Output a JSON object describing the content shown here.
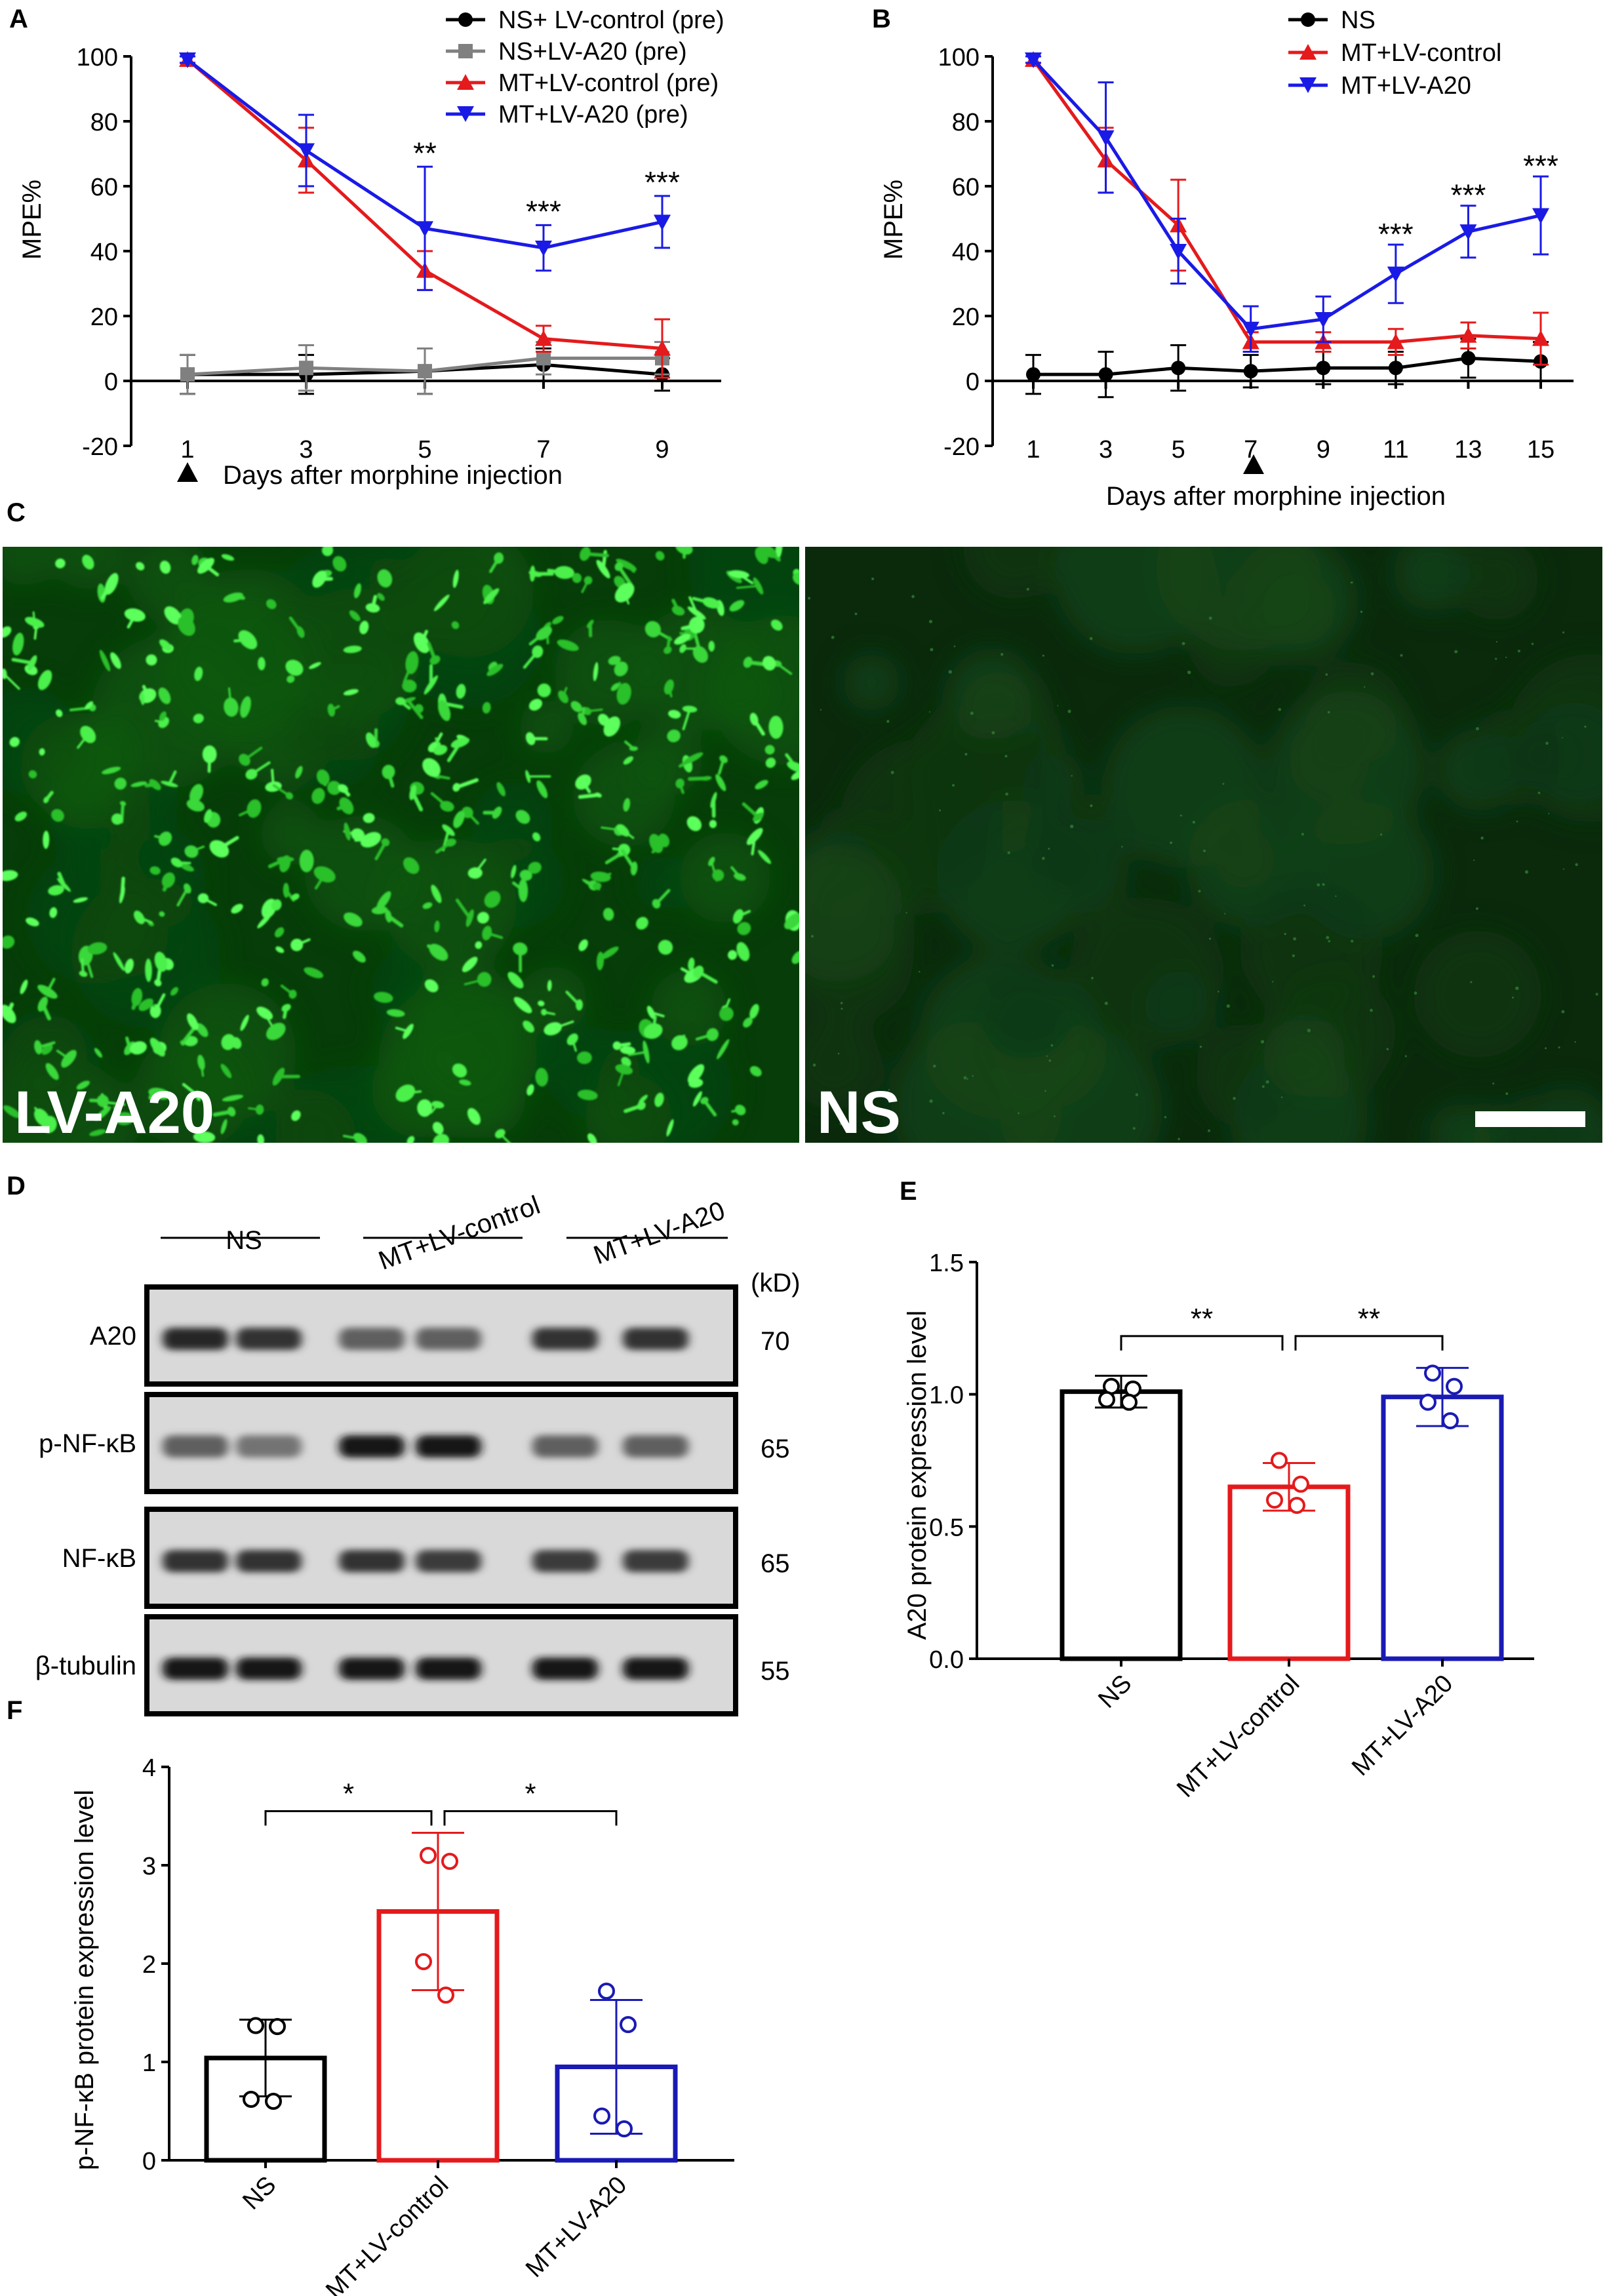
{
  "panels": {
    "A": {
      "letter": "A",
      "ylabel": "MPE%",
      "xlabel": "Days after morphine injection",
      "chart_data": {
        "type": "line",
        "x": [
          1,
          3,
          5,
          7,
          9
        ],
        "xticks": [
          "1",
          "3",
          "5",
          "7",
          "9"
        ],
        "ylim": [
          -20,
          100
        ],
        "yticks": [
          "100",
          "80",
          "60",
          "40",
          "20",
          "0",
          "-20"
        ],
        "series": [
          {
            "name": "NS+ LV-control (pre)",
            "color": "#000000",
            "marker": "circle",
            "values": [
              2,
              2,
              3,
              5,
              2
            ],
            "errors": [
              6,
              6,
              7,
              5,
              5
            ]
          },
          {
            "name": "NS+LV-A20 (pre)",
            "color": "#808080",
            "marker": "square",
            "values": [
              2,
              4,
              3,
              7,
              7
            ],
            "errors": [
              6,
              7,
              7,
              5,
              5
            ]
          },
          {
            "name": "MT+LV-control (pre)",
            "color": "#e41a1c",
            "marker": "triangle-up",
            "values": [
              99,
              68,
              34,
              13,
              10
            ],
            "errors": [
              1,
              10,
              6,
              4,
              9
            ]
          },
          {
            "name": "MT+LV-A20 (pre)",
            "color": "#1a1ae6",
            "marker": "triangle-down",
            "values": [
              99,
              71,
              47,
              41,
              49
            ],
            "errors": [
              1,
              11,
              19,
              7,
              8
            ]
          }
        ],
        "annotations": [
          {
            "x": 5,
            "y": 67,
            "text": "**"
          },
          {
            "x": 7,
            "y": 49,
            "text": "***"
          },
          {
            "x": 9,
            "y": 58,
            "text": "***"
          }
        ],
        "arrow_at_x": 1
      }
    },
    "B": {
      "letter": "B",
      "ylabel": "MPE%",
      "xlabel": "Days after morphine injection",
      "chart_data": {
        "type": "line",
        "x": [
          1,
          3,
          5,
          7,
          9,
          11,
          13,
          15
        ],
        "xticks": [
          "1",
          "3",
          "5",
          "7",
          "9",
          "11",
          "13",
          "15"
        ],
        "ylim": [
          -20,
          100
        ],
        "yticks": [
          "100",
          "80",
          "60",
          "40",
          "20",
          "0",
          "-20"
        ],
        "series": [
          {
            "name": "NS",
            "color": "#000000",
            "marker": "circle",
            "values": [
              2,
              2,
              4,
              3,
              4,
              4,
              7,
              6
            ],
            "errors": [
              6,
              7,
              7,
              5,
              5,
              5,
              6,
              6
            ]
          },
          {
            "name": "MT+LV-control",
            "color": "#e41a1c",
            "marker": "triangle-up",
            "values": [
              99,
              68,
              48,
              12,
              12,
              12,
              14,
              13
            ],
            "errors": [
              1,
              10,
              14,
              3,
              3,
              4,
              4,
              8
            ]
          },
          {
            "name": "MT+LV-A20",
            "color": "#1a1ae6",
            "marker": "triangle-down",
            "values": [
              99,
              75,
              40,
              16,
              19,
              33,
              46,
              51
            ],
            "errors": [
              1,
              17,
              10,
              7,
              7,
              9,
              8,
              12
            ]
          }
        ],
        "annotations": [
          {
            "x": 11,
            "y": 42,
            "text": "***"
          },
          {
            "x": 13,
            "y": 54,
            "text": "***"
          },
          {
            "x": 15,
            "y": 63,
            "text": "***"
          }
        ],
        "arrow_at_x": 7
      }
    },
    "C": {
      "letter": "C",
      "left_label": "LV-A20",
      "right_label": "NS"
    },
    "D": {
      "letter": "D",
      "groups": [
        "NS",
        "MT+LV-control",
        "MT+LV-A20"
      ],
      "kd_label": "(kD)",
      "rows": [
        {
          "label": "A20",
          "kd": "70",
          "intensity": [
            0.85,
            0.8,
            0.55,
            0.55,
            0.8,
            0.8
          ]
        },
        {
          "label": "p-NF-κB",
          "kd": "65",
          "intensity": [
            0.55,
            0.45,
            0.95,
            0.95,
            0.55,
            0.55
          ]
        },
        {
          "label": "NF-κB",
          "kd": "65",
          "intensity": [
            0.8,
            0.8,
            0.8,
            0.75,
            0.75,
            0.75
          ]
        },
        {
          "label": "β-tubulin",
          "kd": "55",
          "intensity": [
            0.95,
            0.95,
            0.95,
            0.95,
            0.95,
            0.95
          ]
        }
      ]
    },
    "E": {
      "letter": "E",
      "ylabel": "A20 protein  expression level",
      "chart_data": {
        "type": "bar",
        "categories": [
          "NS",
          "MT+LV-control",
          "MT+LV-A20"
        ],
        "colors": [
          "#000000",
          "#e41a1c",
          "#1a1ab4"
        ],
        "values": [
          1.01,
          0.65,
          0.99
        ],
        "errors": [
          0.06,
          0.09,
          0.11
        ],
        "points": [
          [
            1.03,
            1.02,
            0.98,
            0.97
          ],
          [
            0.75,
            0.66,
            0.6,
            0.58
          ],
          [
            1.08,
            1.03,
            0.97,
            0.9
          ]
        ],
        "ylim": [
          0,
          1.5
        ],
        "yticks": [
          "0.0",
          "0.5",
          "1.0",
          "1.5"
        ],
        "comparisons": [
          {
            "from": 0,
            "to": 1,
            "y": 1.22,
            "text": "**"
          },
          {
            "from": 1,
            "to": 2,
            "y": 1.22,
            "text": "**"
          }
        ]
      }
    },
    "F": {
      "letter": "F",
      "ylabel": "p-NF-κB protein  expression level",
      "chart_data": {
        "type": "bar",
        "categories": [
          "NS",
          "MT+LV-control",
          "MT+LV-A20"
        ],
        "colors": [
          "#000000",
          "#e41a1c",
          "#1a1ab4"
        ],
        "values": [
          1.04,
          2.53,
          0.95
        ],
        "errors": [
          0.39,
          0.8,
          0.68
        ],
        "points": [
          [
            1.37,
            1.36,
            0.62,
            0.6
          ],
          [
            3.1,
            3.04,
            2.02,
            1.68
          ],
          [
            1.72,
            1.38,
            0.45,
            0.32
          ]
        ],
        "ylim": [
          0,
          4
        ],
        "yticks": [
          "0",
          "1",
          "2",
          "3",
          "4"
        ],
        "comparisons": [
          {
            "from": 0,
            "to": 1,
            "y": 3.55,
            "text": "*"
          },
          {
            "from": 1,
            "to": 2,
            "y": 3.55,
            "text": "*"
          }
        ]
      }
    }
  }
}
